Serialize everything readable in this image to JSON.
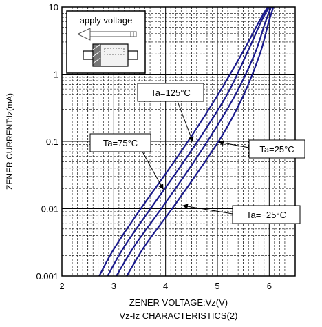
{
  "chart_data": {
    "type": "line",
    "title": "Vz-Iz CHARACTERISTICS(2)",
    "xlabel": "ZENER VOLTAGE:Vz(V)",
    "ylabel": "ZENER CURRENT:Iz(mA)",
    "xlim": [
      2,
      6.5
    ],
    "ylim": [
      0.001,
      10
    ],
    "yscale": "log",
    "x_ticks": [
      "2",
      "3",
      "4",
      "5",
      "6"
    ],
    "y_ticks": [
      "0.001",
      "0.01",
      "0.1",
      "1",
      "10"
    ],
    "grid": true,
    "series": [
      {
        "name": "Ta=125°C",
        "x": [
          2.72,
          3.0,
          3.5,
          4.0,
          4.5,
          5.0,
          5.5,
          5.8,
          5.97
        ],
        "y": [
          0.001,
          0.0025,
          0.0095,
          0.033,
          0.12,
          0.48,
          2.2,
          6.0,
          10
        ]
      },
      {
        "name": "Ta=75°C",
        "x": [
          2.88,
          3.2,
          3.7,
          4.2,
          4.7,
          5.2,
          5.6,
          5.85,
          6.0
        ],
        "y": [
          0.001,
          0.0027,
          0.0098,
          0.034,
          0.125,
          0.52,
          2.3,
          6.2,
          10
        ]
      },
      {
        "name": "Ta=25°C",
        "x": [
          3.05,
          3.4,
          3.9,
          4.4,
          4.9,
          5.35,
          5.72,
          5.92,
          6.04
        ],
        "y": [
          0.001,
          0.0028,
          0.0096,
          0.034,
          0.13,
          0.5,
          2.0,
          5.8,
          10
        ]
      },
      {
        "name": "Ta=−25°C",
        "x": [
          3.25,
          3.6,
          4.1,
          4.6,
          5.1,
          5.5,
          5.82,
          5.98,
          6.08
        ],
        "y": [
          0.001,
          0.0028,
          0.0094,
          0.033,
          0.125,
          0.48,
          2.0,
          5.6,
          10
        ]
      }
    ],
    "annotations": [
      {
        "label": "Ta=125°C",
        "points_to": "Ta=125°C"
      },
      {
        "label": "Ta=75°C",
        "points_to": "Ta=75°C"
      },
      {
        "label": "Ta=25°C",
        "points_to": "Ta=25°C"
      },
      {
        "label": "Ta=−25°C",
        "points_to": "Ta=−25°C"
      }
    ],
    "inset": {
      "label": "apply voltage"
    },
    "line_color": "#1a1a8c"
  }
}
